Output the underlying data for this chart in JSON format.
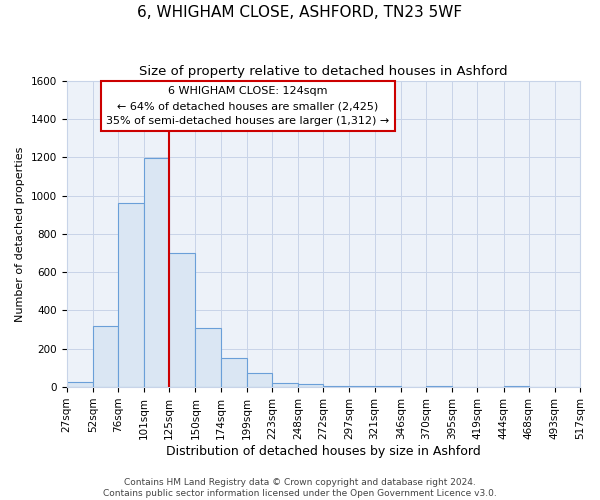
{
  "title1": "6, WHIGHAM CLOSE, ASHFORD, TN23 5WF",
  "title2": "Size of property relative to detached houses in Ashford",
  "xlabel": "Distribution of detached houses by size in Ashford",
  "ylabel": "Number of detached properties",
  "bar_edges": [
    27,
    52,
    76,
    101,
    125,
    150,
    174,
    199,
    223,
    248,
    272,
    297,
    321,
    346,
    370,
    395,
    419,
    444,
    468,
    493,
    517
  ],
  "bar_heights": [
    25,
    320,
    960,
    1195,
    700,
    310,
    150,
    75,
    20,
    15,
    5,
    5,
    5,
    0,
    5,
    0,
    0,
    5,
    0,
    0
  ],
  "bar_color": "#dae6f3",
  "bar_edge_color": "#6a9fd8",
  "vline_x": 125,
  "vline_color": "#cc0000",
  "annotation_line1": "6 WHIGHAM CLOSE: 124sqm",
  "annotation_line2": "← 64% of detached houses are smaller (2,425)",
  "annotation_line3": "35% of semi-detached houses are larger (1,312) →",
  "annotation_box_color": "#cc0000",
  "ylim": [
    0,
    1600
  ],
  "yticks": [
    0,
    200,
    400,
    600,
    800,
    1000,
    1200,
    1400,
    1600
  ],
  "grid_color": "#c8d4e8",
  "background_color": "#edf2f9",
  "footer1": "Contains HM Land Registry data © Crown copyright and database right 2024.",
  "footer2": "Contains public sector information licensed under the Open Government Licence v3.0.",
  "title1_fontsize": 11,
  "title2_fontsize": 9.5,
  "xlabel_fontsize": 9,
  "ylabel_fontsize": 8,
  "tick_fontsize": 7.5,
  "annotation_fontsize": 8,
  "footer_fontsize": 6.5
}
